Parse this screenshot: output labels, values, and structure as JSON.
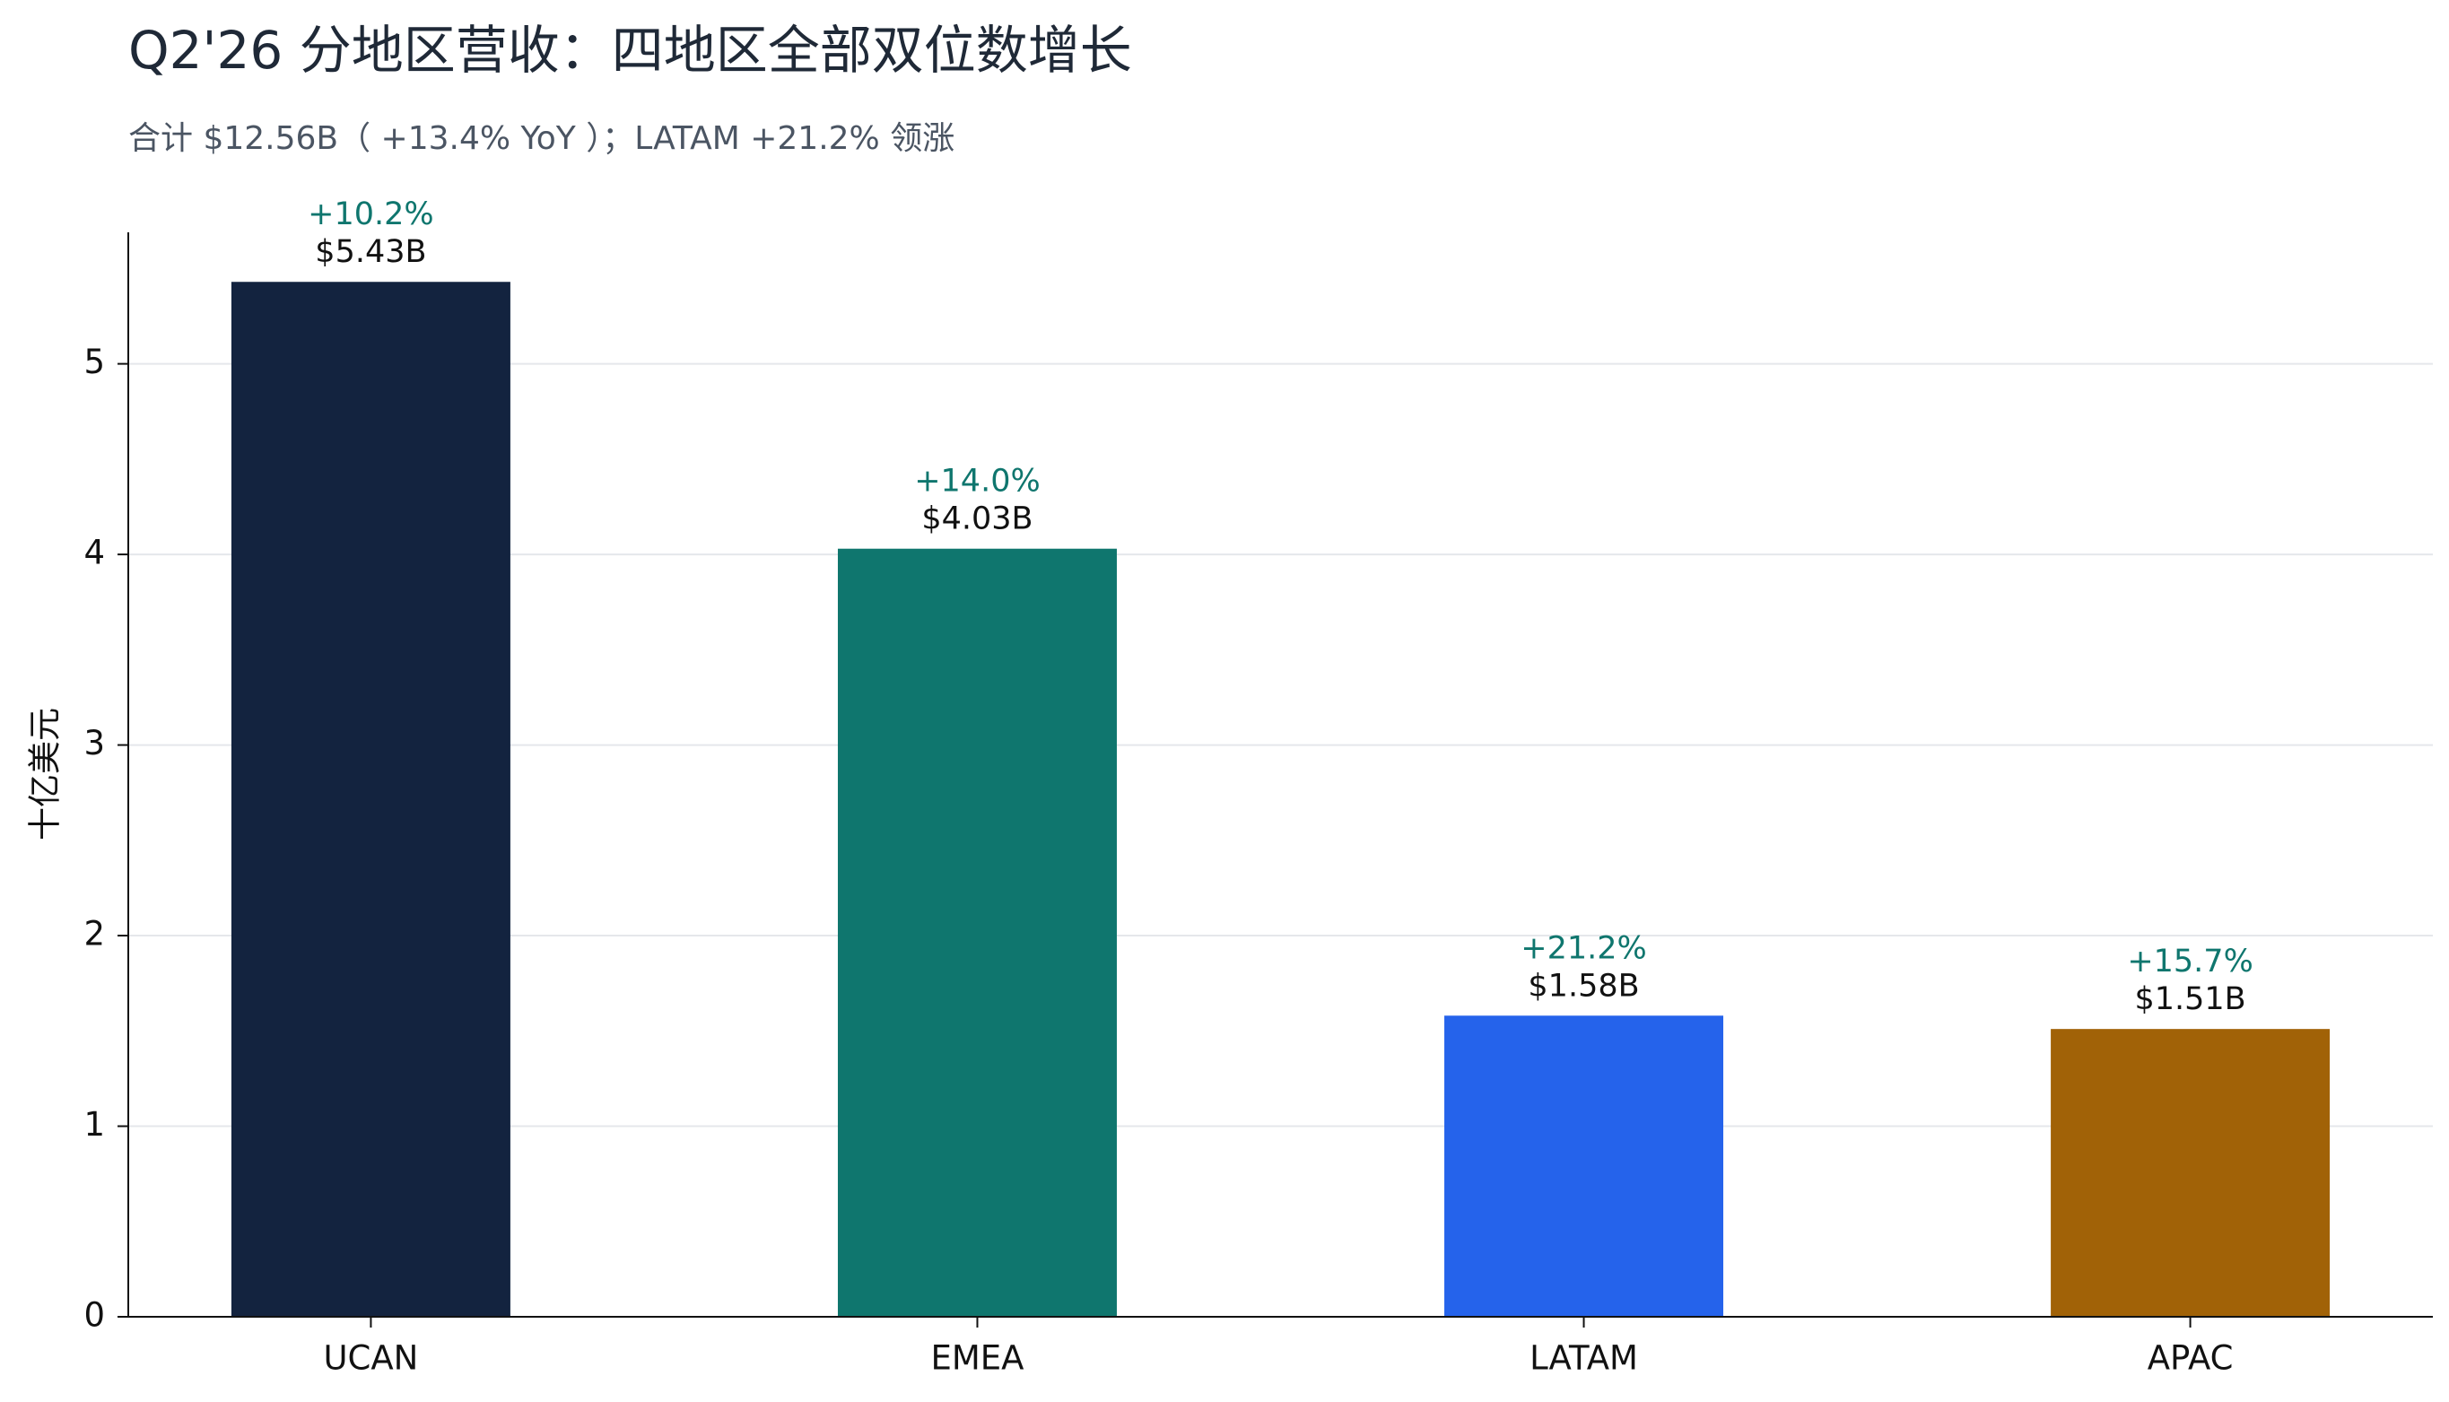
{
  "chart_data": {
    "type": "bar",
    "title": "Q2'26 分地区营收：四地区全部双位数增长",
    "subtitle": "合计 $12.56B（ +13.4% YoY ）；LATAM +21.2% 领涨",
    "y_label": "十亿美元",
    "categories": [
      "UCAN",
      "EMEA",
      "LATAM",
      "APAC"
    ],
    "values": [
      5.43,
      4.03,
      1.58,
      1.51
    ],
    "value_labels": [
      "$5.43B",
      "$4.03B",
      "$1.58B",
      "$1.51B"
    ],
    "annotations": [
      "+10.2%",
      "+14.0%",
      "+21.2%",
      "+15.7%"
    ],
    "colors": [
      "#13233f",
      "#0f766e",
      "#2563eb",
      "#a16207"
    ],
    "annotation_color": "#0f766e",
    "ylim": [
      0,
      5.69
    ],
    "yticks": [
      0,
      1,
      2,
      3,
      4,
      5
    ],
    "grid": true
  }
}
